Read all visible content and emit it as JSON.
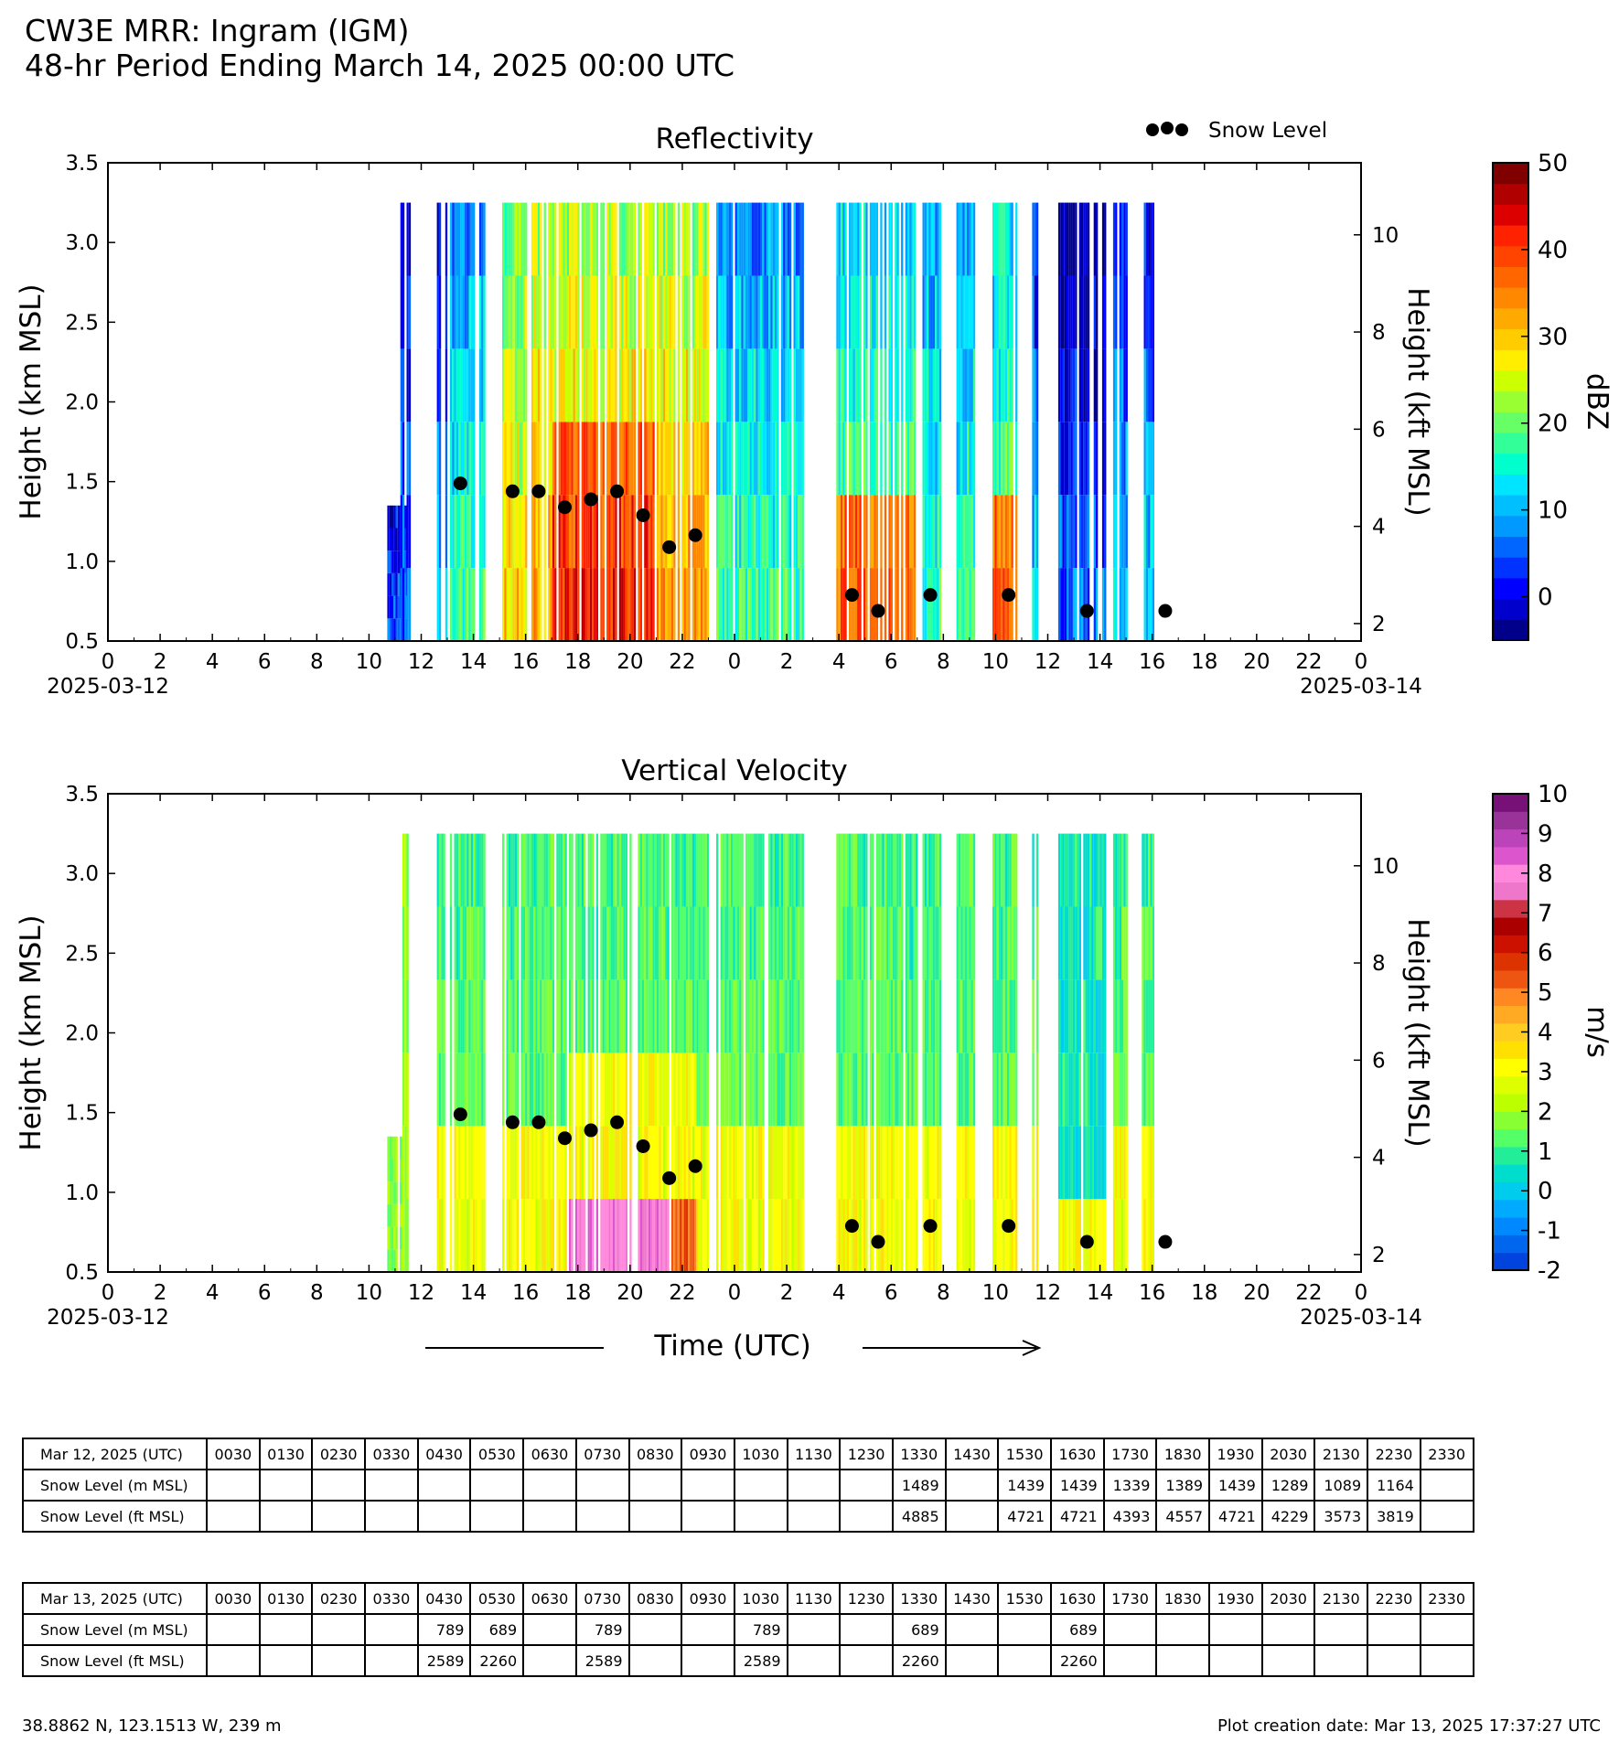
{
  "header": {
    "title": "CW3E MRR: Ingram (IGM)",
    "subtitle": "48-hr Period Ending March 14, 2025 00:00 UTC"
  },
  "legend": {
    "marker_label": "Snow Level"
  },
  "x_axis": {
    "label": "Time (UTC)",
    "start_date": "2025-03-12",
    "end_date": "2025-03-14"
  },
  "chart_data": [
    {
      "type": "heatmap",
      "title": "Reflectivity",
      "ylabel": "Height (km MSL)",
      "y2label": "Height (kft MSL)",
      "xlabel": "Time (UTC)",
      "ylim": [
        0.5,
        3.5
      ],
      "xlim_hours": [
        0,
        48
      ],
      "x_ticks": [
        "0",
        "2",
        "4",
        "6",
        "8",
        "10",
        "12",
        "14",
        "16",
        "18",
        "20",
        "22",
        "0",
        "2",
        "4",
        "6",
        "8",
        "10",
        "12",
        "14",
        "16",
        "18",
        "20",
        "22",
        "0"
      ],
      "y_ticks": [
        "0.5",
        "1.0",
        "1.5",
        "2.0",
        "2.5",
        "3.0",
        "3.5"
      ],
      "y2_ticks": [
        "2",
        "4",
        "6",
        "8",
        "10"
      ],
      "colorbar": {
        "label": "dBZ",
        "ticks": [
          "0",
          "10",
          "20",
          "30",
          "40",
          "50"
        ],
        "min": -5,
        "max": 50,
        "colors": [
          "#00008b",
          "#0000cd",
          "#0000ff",
          "#0033ff",
          "#0066ff",
          "#0099ff",
          "#00bfff",
          "#00e5ff",
          "#00ffcc",
          "#33ff99",
          "#66ff66",
          "#99ff33",
          "#ccff00",
          "#ffee00",
          "#ffcc00",
          "#ffaa00",
          "#ff8800",
          "#ff6600",
          "#ff4400",
          "#ff2200",
          "#dd0000",
          "#b00000",
          "#800000"
        ]
      },
      "snow_level_points": [
        {
          "t": 13.5,
          "km": 1.489
        },
        {
          "t": 15.5,
          "km": 1.439
        },
        {
          "t": 16.5,
          "km": 1.439
        },
        {
          "t": 17.5,
          "km": 1.339
        },
        {
          "t": 18.5,
          "km": 1.389
        },
        {
          "t": 19.5,
          "km": 1.439
        },
        {
          "t": 20.5,
          "km": 1.289
        },
        {
          "t": 21.5,
          "km": 1.089
        },
        {
          "t": 22.5,
          "km": 1.164
        },
        {
          "t": 28.5,
          "km": 0.789
        },
        {
          "t": 29.5,
          "km": 0.689
        },
        {
          "t": 31.5,
          "km": 0.789
        },
        {
          "t": 34.5,
          "km": 0.789
        },
        {
          "t": 37.5,
          "km": 0.689
        },
        {
          "t": 40.5,
          "km": 0.689
        }
      ]
    },
    {
      "type": "heatmap",
      "title": "Vertical Velocity",
      "ylabel": "Height (km MSL)",
      "y2label": "Height (kft MSL)",
      "xlabel": "Time (UTC)",
      "ylim": [
        0.5,
        3.5
      ],
      "xlim_hours": [
        0,
        48
      ],
      "x_ticks": [
        "0",
        "2",
        "4",
        "6",
        "8",
        "10",
        "12",
        "14",
        "16",
        "18",
        "20",
        "22",
        "0",
        "2",
        "4",
        "6",
        "8",
        "10",
        "12",
        "14",
        "16",
        "18",
        "20",
        "22",
        "0"
      ],
      "y_ticks": [
        "0.5",
        "1.0",
        "1.5",
        "2.0",
        "2.5",
        "3.0",
        "3.5"
      ],
      "y2_ticks": [
        "2",
        "4",
        "6",
        "8",
        "10"
      ],
      "colorbar": {
        "label": "m/s",
        "ticks": [
          "-2",
          "-1",
          "0",
          "1",
          "2",
          "3",
          "4",
          "5",
          "6",
          "7",
          "8",
          "9",
          "10"
        ],
        "min": -2,
        "max": 10,
        "colors": [
          "#0044dd",
          "#0066ee",
          "#0088ff",
          "#00aaff",
          "#00ccee",
          "#00ddcc",
          "#22ee99",
          "#55ff66",
          "#88ff33",
          "#bbff00",
          "#ddff00",
          "#ffff00",
          "#ffe000",
          "#ffcc22",
          "#ffaa22",
          "#ff8822",
          "#ee5511",
          "#dd3300",
          "#cc1100",
          "#aa0000",
          "#cc3344",
          "#ee77cc",
          "#ff88dd",
          "#dd55cc",
          "#bb44bb",
          "#993399",
          "#771177"
        ]
      },
      "snow_level_points": [
        {
          "t": 13.5,
          "km": 1.489
        },
        {
          "t": 15.5,
          "km": 1.439
        },
        {
          "t": 16.5,
          "km": 1.439
        },
        {
          "t": 17.5,
          "km": 1.339
        },
        {
          "t": 18.5,
          "km": 1.389
        },
        {
          "t": 19.5,
          "km": 1.439
        },
        {
          "t": 20.5,
          "km": 1.289
        },
        {
          "t": 21.5,
          "km": 1.089
        },
        {
          "t": 22.5,
          "km": 1.164
        },
        {
          "t": 28.5,
          "km": 0.789
        },
        {
          "t": 29.5,
          "km": 0.689
        },
        {
          "t": 31.5,
          "km": 0.789
        },
        {
          "t": 34.5,
          "km": 0.789
        },
        {
          "t": 37.5,
          "km": 0.689
        },
        {
          "t": 40.5,
          "km": 0.689
        }
      ]
    }
  ],
  "tables": [
    {
      "header_label": "Mar 12, 2025 (UTC)",
      "times": [
        "0030",
        "0130",
        "0230",
        "0330",
        "0430",
        "0530",
        "0630",
        "0730",
        "0830",
        "0930",
        "1030",
        "1130",
        "1230",
        "1330",
        "1430",
        "1530",
        "1630",
        "1730",
        "1830",
        "1930",
        "2030",
        "2130",
        "2230",
        "2330"
      ],
      "rows": [
        {
          "label": "Snow Level (m MSL)",
          "values": [
            "",
            "",
            "",
            "",
            "",
            "",
            "",
            "",
            "",
            "",
            "",
            "",
            "",
            "1489",
            "",
            "1439",
            "1439",
            "1339",
            "1389",
            "1439",
            "1289",
            "1089",
            "1164",
            ""
          ]
        },
        {
          "label": "Snow Level (ft MSL)",
          "values": [
            "",
            "",
            "",
            "",
            "",
            "",
            "",
            "",
            "",
            "",
            "",
            "",
            "",
            "4885",
            "",
            "4721",
            "4721",
            "4393",
            "4557",
            "4721",
            "4229",
            "3573",
            "3819",
            ""
          ]
        }
      ]
    },
    {
      "header_label": "Mar 13, 2025 (UTC)",
      "times": [
        "0030",
        "0130",
        "0230",
        "0330",
        "0430",
        "0530",
        "0630",
        "0730",
        "0830",
        "0930",
        "1030",
        "1130",
        "1230",
        "1330",
        "1430",
        "1530",
        "1630",
        "1730",
        "1830",
        "1930",
        "2030",
        "2130",
        "2230",
        "2330"
      ],
      "rows": [
        {
          "label": "Snow Level (m MSL)",
          "values": [
            "",
            "",
            "",
            "",
            "789",
            "689",
            "",
            "789",
            "",
            "",
            "789",
            "",
            "",
            "689",
            "",
            "",
            "689",
            "",
            "",
            "",
            "",
            "",
            "",
            ""
          ]
        },
        {
          "label": "Snow Level (ft MSL)",
          "values": [
            "",
            "",
            "",
            "",
            "2589",
            "2260",
            "",
            "2589",
            "",
            "",
            "2589",
            "",
            "",
            "2260",
            "",
            "",
            "2260",
            "",
            "",
            "",
            "",
            "",
            "",
            ""
          ]
        }
      ]
    }
  ],
  "footer": {
    "location": "38.8862 N, 123.1513 W, 239 m",
    "creation": "Plot creation date: Mar 13, 2025 17:37:27 UTC"
  }
}
